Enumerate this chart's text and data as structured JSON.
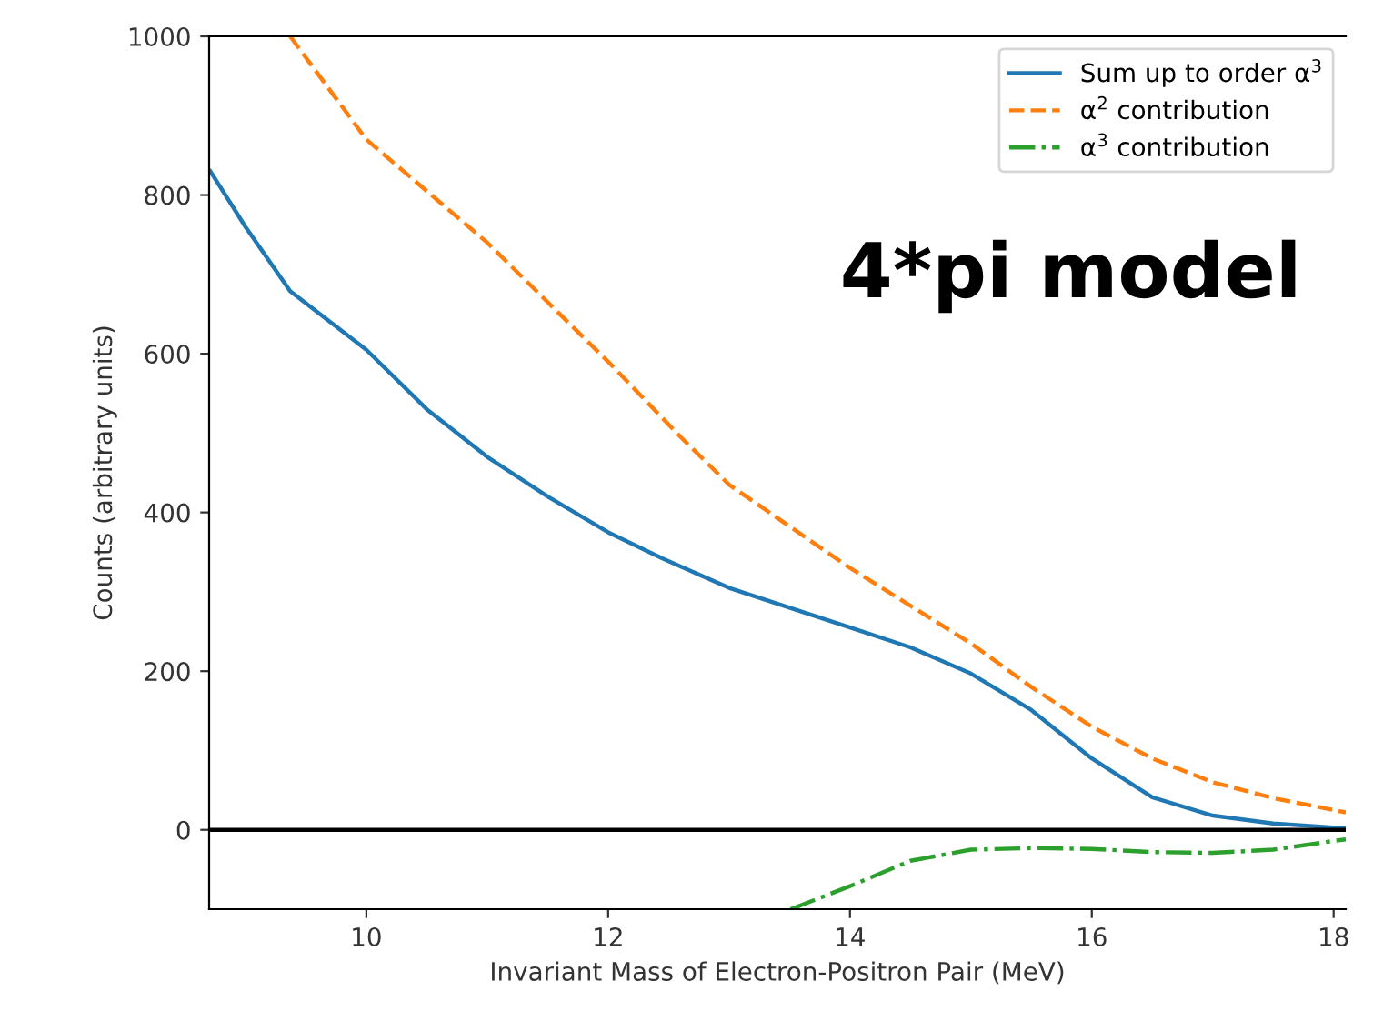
{
  "chart_data": {
    "type": "line",
    "xlabel": "Invariant Mass of Electron-Positron Pair (MeV)",
    "ylabel": "Counts (arbitrary units)",
    "annotations": [
      "4*pi model"
    ],
    "xlim": [
      8.7,
      18.1
    ],
    "xticks": [
      10,
      12,
      14,
      16,
      18
    ],
    "ylim": [
      -100,
      1000
    ],
    "yticks": [
      0,
      200,
      400,
      600,
      800,
      1000
    ],
    "grid": false,
    "legend": "top right",
    "ref_lines": [
      {
        "axis": "y",
        "value": 0,
        "color": "#000000",
        "line_style": "solid"
      }
    ],
    "series": [
      {
        "name": "Sum up to order α$^{3}$",
        "color": "#1f77b4",
        "line_style": "solid",
        "x": [
          8.71,
          9.0,
          9.37,
          10.0,
          10.5,
          11.0,
          11.5,
          12.0,
          12.45,
          13.0,
          13.5,
          14.0,
          14.5,
          15.0,
          15.5,
          16.0,
          16.5,
          17.0,
          17.5,
          18.0,
          18.1
        ],
        "values": [
          830,
          760,
          679,
          605,
          530,
          470,
          420,
          375,
          342,
          305,
          280,
          255,
          230,
          197,
          151,
          90,
          41,
          18,
          8,
          3,
          3
        ]
      },
      {
        "name": "α$^{2}$ contribution",
        "color": "#ff7f0e",
        "line_style": "dashed",
        "x": [
          9.37,
          10.0,
          11.0,
          12.0,
          12.6,
          13.0,
          14.0,
          15.0,
          15.5,
          16.0,
          16.5,
          17.0,
          17.5,
          18.0,
          18.1
        ],
        "values": [
          1000,
          870,
          740,
          590,
          495,
          435,
          330,
          235,
          180,
          130,
          90,
          60,
          40,
          25,
          22
        ]
      },
      {
        "name": "α$^{3}$ contribution",
        "color": "#2ca02c",
        "line_style": "dashdot",
        "x": [
          13.51,
          14.0,
          14.5,
          15.0,
          15.5,
          16.0,
          16.5,
          17.0,
          17.5,
          18.0,
          18.1
        ],
        "values": [
          -100,
          -71,
          -39,
          -25,
          -23,
          -24,
          -28,
          -29,
          -25,
          -14,
          -12
        ]
      }
    ]
  }
}
